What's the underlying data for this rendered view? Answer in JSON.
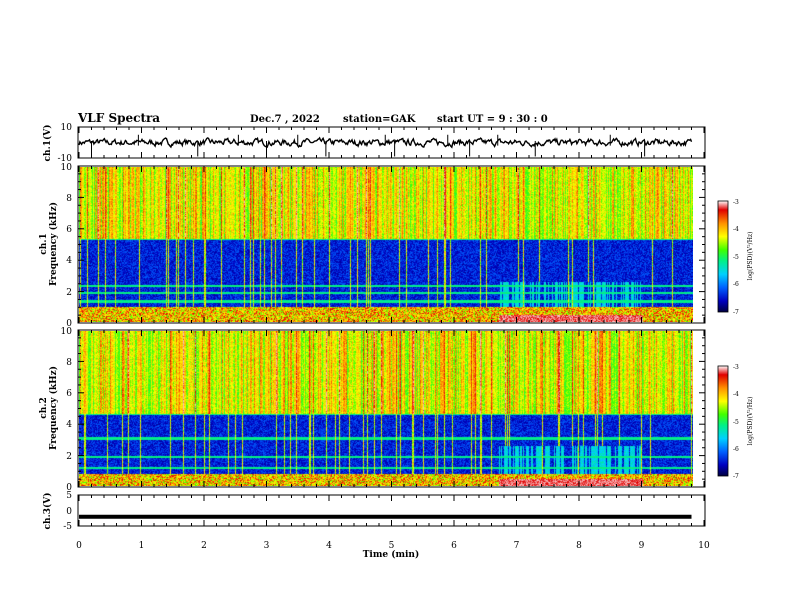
{
  "header": {
    "title": "VLF Spectra",
    "date": "Dec.7 , 2022",
    "station": "station=GAK",
    "start": "start  UT =  9 : 30 : 0"
  },
  "chart_data": [
    {
      "type": "line",
      "panel": "ch1-waveform",
      "ylabel": "ch.1(V)",
      "xlim": [
        0,
        10
      ],
      "ylim": [
        -10,
        10
      ],
      "yticks": [
        "10",
        "-10"
      ],
      "x_extent_min": 9.8,
      "mean": 0,
      "amplitude_range": [
        -3,
        3
      ],
      "spikes": [
        0.2,
        0.95,
        1.9,
        2.55,
        3.0,
        3.5,
        3.95,
        4.9,
        5.05,
        5.9,
        6.25,
        6.7,
        7.3,
        8.5,
        9.05
      ]
    },
    {
      "type": "heatmap",
      "panel": "ch1-spectrogram",
      "ylabel": [
        "ch.1",
        "Frequency (kHz)"
      ],
      "xlim": [
        0,
        10
      ],
      "ylim": [
        0,
        10
      ],
      "yticks": [
        "0",
        "2",
        "4",
        "6",
        "8",
        "10"
      ],
      "x_extent_min": 9.8,
      "colorbar": {
        "label": "log(PSD)(V²/Hz)",
        "range": [
          -7,
          -3
        ],
        "ticks": [
          "-3",
          "-4",
          "-5",
          "-6",
          "-7"
        ]
      },
      "bands_khz": [
        0.35,
        0.65,
        0.95,
        1.35,
        1.9,
        2.35,
        5.4
      ],
      "features": {
        "quiet_floor_khz": [
          1.0,
          5.4
        ],
        "interval_min": [
          6.7,
          9.0
        ]
      }
    },
    {
      "type": "heatmap",
      "panel": "ch2-spectrogram",
      "ylabel": [
        "ch.2",
        "Frequency (kHz)"
      ],
      "xlim": [
        0,
        10
      ],
      "ylim": [
        0,
        10
      ],
      "yticks": [
        "0",
        "2",
        "4",
        "6",
        "8",
        "10"
      ],
      "x_extent_min": 9.8,
      "colorbar": {
        "label": "log(PSD)(V²/Hz)",
        "range": [
          -7,
          -3
        ],
        "ticks": [
          "-3",
          "-4",
          "-5",
          "-6",
          "-7"
        ]
      },
      "bands_khz": [
        0.3,
        0.7,
        1.2,
        1.9,
        3.1,
        4.7
      ],
      "features": {
        "quiet_floor_khz": [
          0.8,
          4.7
        ],
        "interval_min": [
          6.7,
          9.0
        ]
      }
    },
    {
      "type": "line",
      "panel": "ch3-waveform",
      "ylabel": "ch.3(V)",
      "xlabel": "Time (min)",
      "xlim": [
        0,
        10
      ],
      "ylim": [
        -5,
        5
      ],
      "yticks": [
        "5",
        "0",
        "-5"
      ],
      "xticks": [
        "0",
        "1",
        "2",
        "3",
        "4",
        "5",
        "6",
        "7",
        "8",
        "9",
        "10"
      ],
      "x_extent_min": 9.8,
      "value": -2.0
    }
  ],
  "colors": {
    "axis": "#000000",
    "waveform": "#000000",
    "colormap": [
      "#000040",
      "#0000c0",
      "#0060ff",
      "#00d0ff",
      "#00f088",
      "#40ff00",
      "#ffff00",
      "#ff9000",
      "#e00000",
      "#ffffff"
    ]
  }
}
